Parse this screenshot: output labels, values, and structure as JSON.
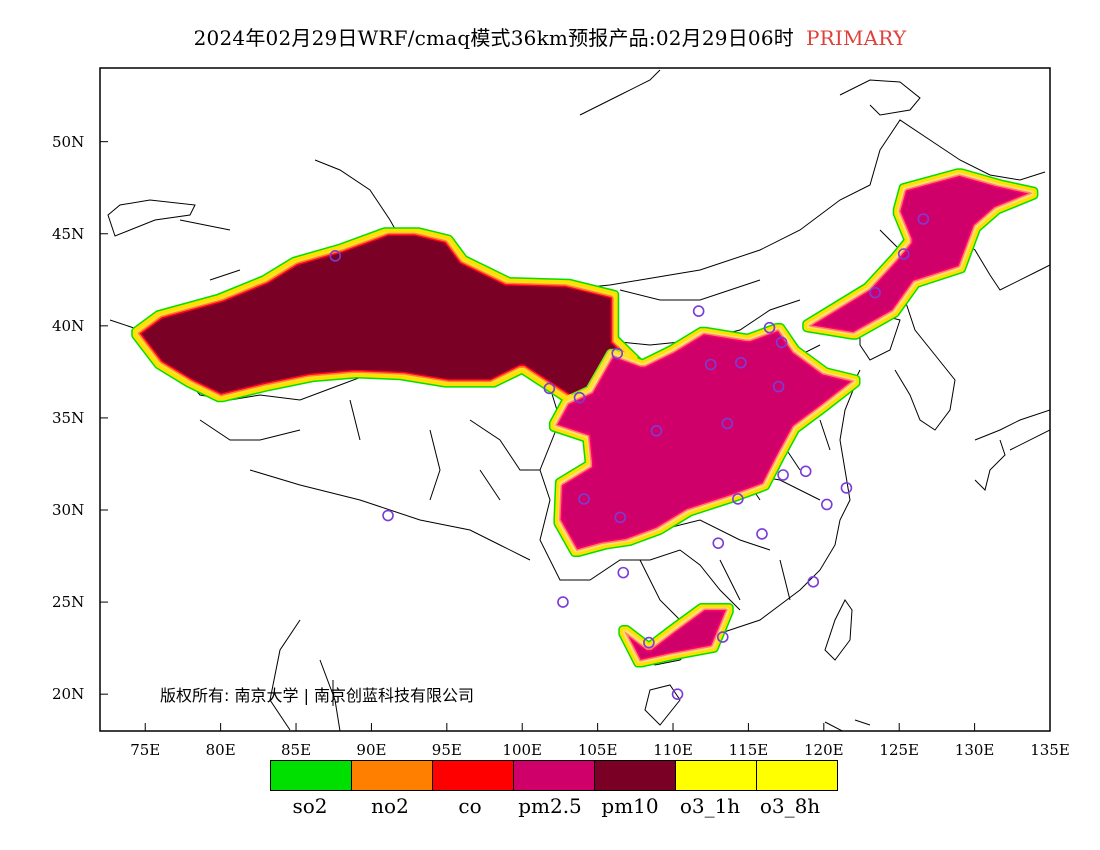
{
  "title": {
    "main": "2024年02月29日WRF/cmaq模式36km预报产品:02月29日06时",
    "tag": "PRIMARY",
    "tag_color": "#e0403a"
  },
  "credit": "版权所有: 南京大学 | 南京创蓝科技有限公司",
  "axes": {
    "lon_ticks": [
      "75E",
      "80E",
      "85E",
      "90E",
      "95E",
      "100E",
      "105E",
      "110E",
      "115E",
      "120E",
      "125E",
      "130E",
      "135E"
    ],
    "lat_ticks": [
      "50N",
      "45N",
      "40N",
      "35N",
      "30N",
      "25N",
      "20N"
    ],
    "lon_range": [
      72,
      135
    ],
    "lat_range": [
      18,
      54
    ]
  },
  "legend": {
    "items": [
      {
        "label": "so2",
        "color": "#00e000"
      },
      {
        "label": "no2",
        "color": "#ff8000"
      },
      {
        "label": "co",
        "color": "#ff0000"
      },
      {
        "label": "pm2.5",
        "color": "#d0006a"
      },
      {
        "label": "pm10",
        "color": "#7a0026"
      },
      {
        "label": "o3_1h",
        "color": "#ffff00"
      },
      {
        "label": "o3_8h",
        "color": "#ffff00"
      }
    ]
  },
  "chart_data": {
    "type": "map",
    "variable": "PRIMARY",
    "regions": [
      {
        "pollutant": "pm10",
        "color": "#7a0026",
        "polygon": [
          [
            74.5,
            39.6
          ],
          [
            76,
            40.5
          ],
          [
            80,
            41.4
          ],
          [
            83,
            42.4
          ],
          [
            85,
            43.4
          ],
          [
            88,
            44.1
          ],
          [
            91,
            45.0
          ],
          [
            93,
            45.0
          ],
          [
            95,
            44.6
          ],
          [
            96,
            43.5
          ],
          [
            99,
            42.3
          ],
          [
            103,
            42.2
          ],
          [
            106,
            41.6
          ],
          [
            106,
            39.2
          ],
          [
            108,
            37.6
          ],
          [
            110,
            37.4
          ],
          [
            110,
            35
          ],
          [
            106,
            35
          ],
          [
            103,
            36.2
          ],
          [
            100,
            37.8
          ],
          [
            98,
            37.0
          ],
          [
            95,
            37.0
          ],
          [
            92,
            37.4
          ],
          [
            89,
            37.5
          ],
          [
            86,
            37.3
          ],
          [
            83,
            36.8
          ],
          [
            80,
            36.2
          ],
          [
            78,
            37.0
          ],
          [
            76,
            38.0
          ]
        ]
      },
      {
        "pollutant": "pm2.5",
        "color": "#d0006a",
        "polygon": [
          [
            106,
            38.4
          ],
          [
            108,
            37.8
          ],
          [
            110,
            38.6
          ],
          [
            112,
            39.6
          ],
          [
            115,
            39.2
          ],
          [
            117,
            39.8
          ],
          [
            118,
            38.6
          ],
          [
            120,
            37.4
          ],
          [
            122,
            37.0
          ],
          [
            119.8,
            35.6
          ],
          [
            118,
            34.5
          ],
          [
            117,
            33
          ],
          [
            116,
            31.4
          ],
          [
            114,
            30.8
          ],
          [
            111,
            30.0
          ],
          [
            109,
            29.0
          ],
          [
            107,
            28.4
          ],
          [
            105.4,
            28.2
          ],
          [
            103.6,
            27.8
          ],
          [
            102.5,
            29.4
          ],
          [
            102.6,
            31.4
          ],
          [
            104.6,
            32.4
          ],
          [
            104.4,
            34.0
          ],
          [
            102.2,
            34.6
          ],
          [
            103,
            35.8
          ],
          [
            104.6,
            36.4
          ]
        ]
      },
      {
        "pollutant": "pm2.5",
        "color": "#d0006a",
        "polygon": [
          [
            119,
            40.0
          ],
          [
            121,
            41.0
          ],
          [
            123,
            42.0
          ],
          [
            124.8,
            43.6
          ],
          [
            125.8,
            44.6
          ],
          [
            125,
            46.2
          ],
          [
            125.4,
            47.4
          ],
          [
            129,
            48.2
          ],
          [
            131.6,
            47.6
          ],
          [
            133.8,
            47.2
          ],
          [
            131.4,
            46.4
          ],
          [
            130,
            45.4
          ],
          [
            129,
            43.2
          ],
          [
            126,
            42.4
          ],
          [
            124.6,
            40.8
          ],
          [
            122,
            39.6
          ]
        ]
      },
      {
        "pollutant": "pm2.5",
        "color": "#d0006a",
        "polygon": [
          [
            106.8,
            23.4
          ],
          [
            108.4,
            22.4
          ],
          [
            110,
            23.4
          ],
          [
            112,
            24.6
          ],
          [
            113.6,
            24.6
          ],
          [
            112.6,
            22.6
          ],
          [
            110,
            22.2
          ],
          [
            107.8,
            21.8
          ]
        ]
      }
    ],
    "city_markers": [
      [
        87.6,
        43.8
      ],
      [
        111.7,
        40.8
      ],
      [
        116.4,
        39.9
      ],
      [
        117.2,
        39.1
      ],
      [
        114.5,
        38.0
      ],
      [
        112.5,
        37.9
      ],
      [
        106.3,
        38.5
      ],
      [
        103.8,
        36.1
      ],
      [
        101.8,
        36.6
      ],
      [
        108.9,
        34.3
      ],
      [
        113.6,
        34.7
      ],
      [
        117.0,
        36.7
      ],
      [
        126.6,
        45.8
      ],
      [
        125.3,
        43.9
      ],
      [
        123.4,
        41.8
      ],
      [
        104.1,
        30.6
      ],
      [
        106.5,
        29.6
      ],
      [
        114.3,
        30.6
      ],
      [
        117.3,
        31.9
      ],
      [
        118.8,
        32.1
      ],
      [
        121.5,
        31.2
      ],
      [
        120.2,
        30.3
      ],
      [
        115.9,
        28.7
      ],
      [
        113.0,
        28.2
      ],
      [
        106.7,
        26.6
      ],
      [
        102.7,
        25.0
      ],
      [
        119.3,
        26.1
      ],
      [
        113.3,
        23.1
      ],
      [
        108.4,
        22.8
      ],
      [
        110.3,
        20.0
      ],
      [
        91.1,
        29.7
      ]
    ]
  }
}
